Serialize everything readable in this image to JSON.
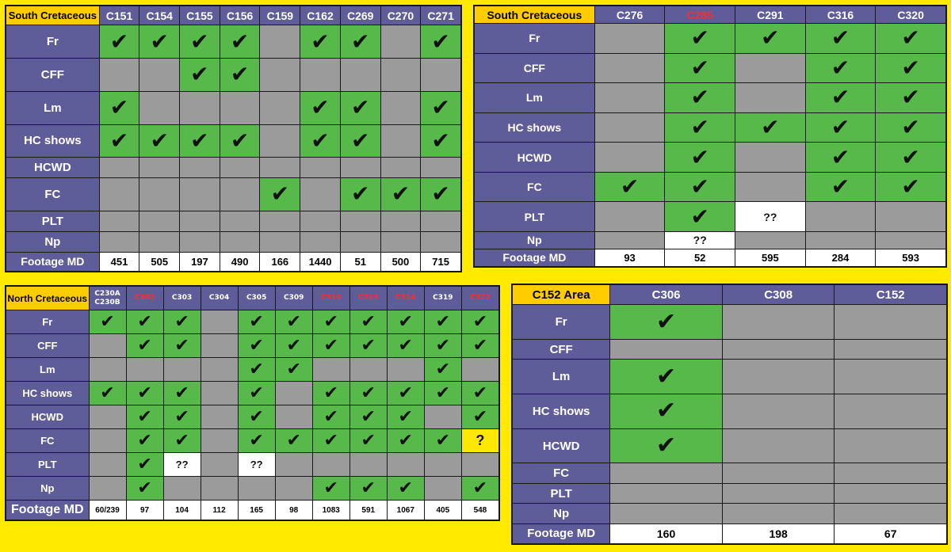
{
  "colors": {
    "background": "#ffea00",
    "header": "#5f5d99",
    "present": "#56b94a",
    "absent": "#9b9b9b",
    "unknown": "#ffffff",
    "corner": "#ffcc00",
    "highlight_text": "#ff2a2a"
  },
  "icon": "check-mark-icon",
  "check_symbol": "✔",
  "tables": [
    {
      "id": "p1",
      "title": "South Cretaceous",
      "columns": [
        {
          "name": "C151",
          "red": false
        },
        {
          "name": "C154",
          "red": false
        },
        {
          "name": "C155",
          "red": false
        },
        {
          "name": "C156",
          "red": false
        },
        {
          "name": "C159",
          "red": false
        },
        {
          "name": "C162",
          "red": false
        },
        {
          "name": "C269",
          "red": false
        },
        {
          "name": "C270",
          "red": false
        },
        {
          "name": "C271",
          "red": false
        }
      ],
      "rows": [
        {
          "label": "Fr",
          "cells": [
            "y",
            "y",
            "y",
            "y",
            "g",
            "y",
            "y",
            "g",
            "y"
          ]
        },
        {
          "label": "CFF",
          "cells": [
            "g",
            "g",
            "y",
            "y",
            "g",
            "g",
            "g",
            "g",
            "g"
          ]
        },
        {
          "label": "Lm",
          "cells": [
            "y",
            "g",
            "g",
            "g",
            "g",
            "y",
            "y",
            "g",
            "y"
          ]
        },
        {
          "label": "HC shows",
          "cells": [
            "y",
            "y",
            "y",
            "y",
            "g",
            "y",
            "y",
            "g",
            "y"
          ]
        },
        {
          "label": "HCWD",
          "cells": [
            "g",
            "g",
            "g",
            "g",
            "g",
            "g",
            "g",
            "g",
            "g"
          ]
        },
        {
          "label": "FC",
          "cells": [
            "g",
            "g",
            "g",
            "g",
            "y",
            "g",
            "y",
            "y",
            "y"
          ]
        },
        {
          "label": "PLT",
          "cells": [
            "g",
            "g",
            "g",
            "g",
            "g",
            "g",
            "g",
            "g",
            "g"
          ]
        },
        {
          "label": "Np",
          "cells": [
            "g",
            "g",
            "g",
            "g",
            "g",
            "g",
            "g",
            "g",
            "g"
          ]
        }
      ],
      "footer_label": "Footage MD",
      "footer": [
        "451",
        "505",
        "197",
        "490",
        "166",
        "1440",
        "51",
        "500",
        "715"
      ]
    },
    {
      "id": "p2",
      "title": "South Cretaceous",
      "columns": [
        {
          "name": "C276",
          "red": false
        },
        {
          "name": "C285",
          "red": true
        },
        {
          "name": "C291",
          "red": false
        },
        {
          "name": "C316",
          "red": false
        },
        {
          "name": "C320",
          "red": false
        }
      ],
      "rows": [
        {
          "label": "Fr",
          "cells": [
            "g",
            "y",
            "y",
            "y",
            "y"
          ]
        },
        {
          "label": "CFF",
          "cells": [
            "g",
            "y",
            "g",
            "y",
            "y"
          ]
        },
        {
          "label": "Lm",
          "cells": [
            "g",
            "y",
            "g",
            "y",
            "y"
          ]
        },
        {
          "label": "HC shows",
          "cells": [
            "g",
            "y",
            "y",
            "y",
            "y"
          ]
        },
        {
          "label": "HCWD",
          "cells": [
            "g",
            "y",
            "g",
            "y",
            "y"
          ]
        },
        {
          "label": "FC",
          "cells": [
            "y",
            "y",
            "g",
            "y",
            "y"
          ]
        },
        {
          "label": "PLT",
          "cells": [
            "g",
            "y",
            "w:??",
            "g",
            "g"
          ]
        },
        {
          "label": "Np",
          "cells": [
            "g",
            "w:??",
            "g",
            "g",
            "g"
          ]
        }
      ],
      "footer_label": "Footage MD",
      "footer": [
        "93",
        "52",
        "595",
        "284",
        "593"
      ]
    },
    {
      "id": "p3",
      "title": "North Cretaceous",
      "columns": [
        {
          "name": "C230A C230B",
          "red": false
        },
        {
          "name": "C302",
          "red": true
        },
        {
          "name": "C303",
          "red": false
        },
        {
          "name": "C304",
          "red": false
        },
        {
          "name": "C305",
          "red": false
        },
        {
          "name": "C309",
          "red": false
        },
        {
          "name": "C310",
          "red": true
        },
        {
          "name": "C313",
          "red": true
        },
        {
          "name": "C314",
          "red": true
        },
        {
          "name": "C319",
          "red": false
        },
        {
          "name": "C322",
          "red": true
        }
      ],
      "rows": [
        {
          "label": "Fr",
          "cells": [
            "y",
            "y",
            "y",
            "g",
            "y",
            "y",
            "y",
            "y",
            "y",
            "y",
            "y"
          ]
        },
        {
          "label": "CFF",
          "cells": [
            "g",
            "y",
            "y",
            "g",
            "y",
            "y",
            "y",
            "y",
            "y",
            "y",
            "y"
          ]
        },
        {
          "label": "Lm",
          "cells": [
            "g",
            "g",
            "g",
            "g",
            "y",
            "y",
            "g",
            "g",
            "g",
            "y",
            "g"
          ]
        },
        {
          "label": "HC shows",
          "cells": [
            "y",
            "y",
            "y",
            "g",
            "y",
            "g",
            "y",
            "y",
            "y",
            "y",
            "y"
          ]
        },
        {
          "label": "HCWD",
          "cells": [
            "g",
            "y",
            "y",
            "g",
            "y",
            "g",
            "y",
            "y",
            "y",
            "g",
            "y"
          ]
        },
        {
          "label": "FC",
          "cells": [
            "g",
            "y",
            "y",
            "g",
            "y",
            "y",
            "y",
            "y",
            "y",
            "y",
            "q:?"
          ]
        },
        {
          "label": "PLT",
          "cells": [
            "g",
            "y",
            "w:??",
            "g",
            "w:??",
            "g",
            "g",
            "g",
            "g",
            "g",
            "g"
          ]
        },
        {
          "label": "Np",
          "cells": [
            "g",
            "y",
            "g",
            "g",
            "g",
            "g",
            "y",
            "y",
            "y",
            "g",
            "y"
          ]
        }
      ],
      "footer_label": "Footage MD",
      "footer": [
        "60/239",
        "97",
        "104",
        "112",
        "165",
        "98",
        "1083",
        "591",
        "1067",
        "405",
        "548"
      ]
    },
    {
      "id": "p4",
      "title": "C152 Area",
      "columns": [
        {
          "name": "C306",
          "red": false
        },
        {
          "name": "C308",
          "red": false
        },
        {
          "name": "C152",
          "red": false
        }
      ],
      "rows": [
        {
          "label": "Fr",
          "cells": [
            "y",
            "g",
            "g"
          ]
        },
        {
          "label": "CFF",
          "cells": [
            "g",
            "g",
            "g"
          ]
        },
        {
          "label": "Lm",
          "cells": [
            "y",
            "g",
            "g"
          ]
        },
        {
          "label": "HC shows",
          "cells": [
            "y",
            "g",
            "g"
          ]
        },
        {
          "label": "HCWD",
          "cells": [
            "y",
            "g",
            "g"
          ]
        },
        {
          "label": "FC",
          "cells": [
            "g",
            "g",
            "g"
          ]
        },
        {
          "label": "PLT",
          "cells": [
            "g",
            "g",
            "g"
          ]
        },
        {
          "label": "Np",
          "cells": [
            "g",
            "g",
            "g"
          ]
        }
      ],
      "footer_label": "Footage MD",
      "footer": [
        "160",
        "198",
        "67"
      ]
    }
  ]
}
